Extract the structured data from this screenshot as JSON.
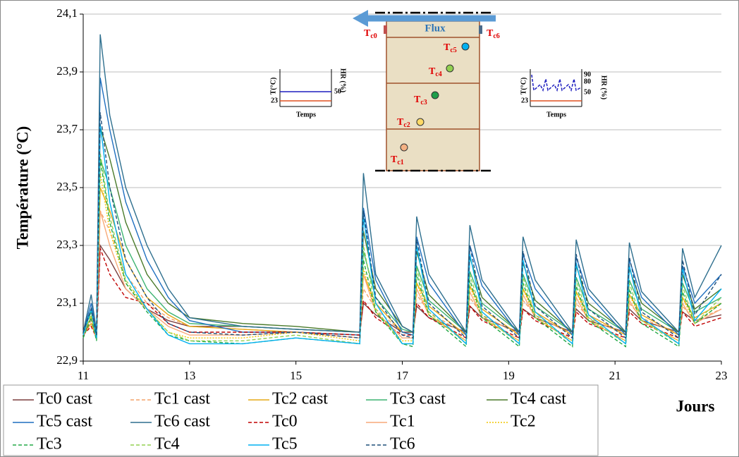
{
  "chart_data": {
    "type": "line",
    "ylabel": "Température (°C)",
    "xlabel": "Jours",
    "x": [
      11,
      11.15,
      11.25,
      11.32,
      11.5,
      11.8,
      12.2,
      12.6,
      13,
      14,
      15,
      16.2,
      16.27,
      16.5,
      17,
      17.2,
      17.27,
      17.5,
      18.2,
      18.27,
      18.5,
      19.2,
      19.27,
      19.5,
      20.2,
      20.27,
      20.5,
      21.2,
      21.27,
      21.5,
      22.2,
      22.27,
      22.5,
      23
    ],
    "xlim": [
      11,
      23
    ],
    "xticks": [
      11,
      13,
      15,
      17,
      19,
      21,
      23
    ],
    "ylim": [
      22.9,
      24.1
    ],
    "yticks": [
      {
        "value": 22.9,
        "label": "22,9"
      },
      {
        "value": 23.1,
        "label": "23,1"
      },
      {
        "value": 23.3,
        "label": "23,3"
      },
      {
        "value": 23.5,
        "label": "23,5"
      },
      {
        "value": 23.7,
        "label": "23,7"
      },
      {
        "value": 23.9,
        "label": "23,9"
      },
      {
        "value": 24.1,
        "label": "24,1"
      }
    ],
    "grid": true,
    "series": [
      {
        "name": "Tc0 cast",
        "color": "#7b3f3f",
        "dash": "solid",
        "values": [
          23.0,
          23.03,
          22.99,
          23.3,
          23.25,
          23.15,
          23.08,
          23.04,
          23.02,
          23.02,
          23.01,
          23.0,
          23.1,
          23.06,
          23.0,
          23.0,
          23.09,
          23.05,
          23.0,
          23.09,
          23.05,
          23.0,
          23.08,
          23.05,
          23.0,
          23.08,
          23.04,
          23.0,
          23.08,
          23.04,
          23.0,
          23.07,
          23.04,
          23.06
        ]
      },
      {
        "name": "Tc1 cast",
        "color": "#f4a46a",
        "dash": "dashed",
        "values": [
          23.0,
          23.04,
          22.99,
          23.42,
          23.35,
          23.2,
          23.1,
          23.05,
          23.02,
          23.01,
          23.0,
          22.99,
          23.15,
          23.08,
          23.0,
          22.99,
          23.13,
          23.07,
          22.99,
          23.12,
          23.06,
          22.99,
          23.11,
          23.06,
          22.99,
          23.1,
          23.05,
          22.99,
          23.1,
          23.05,
          22.99,
          23.09,
          23.04,
          23.08
        ]
      },
      {
        "name": "Tc2 cast",
        "color": "#e6a817",
        "dash": "solid",
        "values": [
          23.0,
          23.05,
          22.99,
          23.5,
          23.42,
          23.25,
          23.12,
          23.06,
          23.02,
          23.01,
          23.0,
          22.99,
          23.2,
          23.1,
          23.0,
          22.99,
          23.17,
          23.09,
          22.99,
          23.16,
          23.08,
          22.99,
          23.15,
          23.07,
          22.99,
          23.14,
          23.06,
          22.99,
          23.13,
          23.06,
          22.99,
          23.12,
          23.05,
          23.1
        ]
      },
      {
        "name": "Tc3 cast",
        "color": "#3cb371",
        "dash": "solid",
        "values": [
          23.0,
          23.07,
          23.0,
          23.6,
          23.5,
          23.3,
          23.15,
          23.07,
          23.03,
          23.02,
          23.01,
          23.0,
          23.28,
          23.12,
          23.01,
          23.0,
          23.23,
          23.11,
          23.0,
          23.21,
          23.1,
          23.0,
          23.2,
          23.09,
          23.0,
          23.19,
          23.08,
          23.0,
          23.18,
          23.08,
          23.0,
          23.17,
          23.07,
          23.12
        ]
      },
      {
        "name": "Tc4 cast",
        "color": "#4a7a2a",
        "dash": "solid",
        "values": [
          23.0,
          23.08,
          23.0,
          23.71,
          23.6,
          23.38,
          23.2,
          23.1,
          23.05,
          23.03,
          23.02,
          23.0,
          23.35,
          23.15,
          23.02,
          23.0,
          23.28,
          23.13,
          23.0,
          23.26,
          23.12,
          23.0,
          23.24,
          23.11,
          23.0,
          23.23,
          23.1,
          23.0,
          23.22,
          23.1,
          23.0,
          23.2,
          23.08,
          23.15
        ]
      },
      {
        "name": "Tc5 cast",
        "color": "#1f6fbf",
        "dash": "solid",
        "values": [
          23.0,
          23.1,
          23.0,
          23.88,
          23.7,
          23.45,
          23.25,
          23.12,
          23.04,
          23.0,
          23.0,
          22.99,
          23.43,
          23.18,
          23.0,
          22.99,
          23.33,
          23.17,
          22.99,
          23.3,
          23.16,
          22.99,
          23.27,
          23.15,
          22.99,
          23.26,
          23.13,
          22.99,
          23.25,
          23.12,
          22.99,
          23.23,
          23.1,
          23.2
        ]
      },
      {
        "name": "Tc6 cast",
        "color": "#2e6f8e",
        "dash": "solid",
        "values": [
          23.0,
          23.13,
          23.0,
          24.03,
          23.75,
          23.5,
          23.3,
          23.15,
          23.05,
          23.02,
          23.01,
          23.0,
          23.55,
          23.2,
          23.02,
          23.0,
          23.4,
          23.2,
          23.0,
          23.37,
          23.18,
          23.0,
          23.33,
          23.18,
          23.0,
          23.32,
          23.15,
          23.0,
          23.31,
          23.14,
          23.0,
          23.29,
          23.12,
          23.3
        ]
      },
      {
        "name": "Tc0",
        "color": "#c00000",
        "dash": "dashed",
        "values": [
          22.99,
          23.02,
          22.98,
          23.29,
          23.2,
          23.12,
          23.1,
          23.03,
          23.0,
          23.0,
          23.0,
          22.99,
          23.11,
          23.05,
          22.99,
          22.99,
          23.1,
          23.05,
          22.98,
          23.09,
          23.04,
          22.98,
          23.08,
          23.04,
          22.98,
          23.07,
          23.03,
          22.98,
          23.07,
          23.03,
          22.98,
          23.07,
          23.02,
          23.05
        ]
      },
      {
        "name": "Tc1",
        "color": "#f7a978",
        "dash": "solid",
        "values": [
          22.99,
          23.03,
          22.98,
          23.42,
          23.3,
          23.15,
          23.08,
          23.02,
          22.99,
          22.99,
          23.0,
          22.98,
          23.2,
          23.07,
          22.98,
          22.98,
          23.15,
          23.06,
          22.97,
          23.14,
          23.05,
          22.97,
          23.13,
          23.05,
          22.97,
          23.12,
          23.04,
          22.97,
          23.11,
          23.04,
          22.97,
          23.1,
          23.03,
          23.08
        ]
      },
      {
        "name": "Tc2",
        "color": "#f2c500",
        "dash": "dotted",
        "values": [
          22.99,
          23.03,
          22.98,
          23.55,
          23.35,
          23.17,
          23.08,
          23.0,
          22.98,
          22.98,
          23.0,
          22.97,
          23.22,
          23.07,
          22.97,
          22.97,
          23.17,
          23.06,
          22.97,
          23.16,
          23.05,
          22.97,
          23.15,
          23.05,
          22.97,
          23.14,
          23.04,
          22.97,
          23.13,
          23.04,
          22.97,
          23.12,
          23.03,
          23.1
        ]
      },
      {
        "name": "Tc3",
        "color": "#22a846",
        "dash": "dashed",
        "values": [
          22.98,
          23.05,
          22.97,
          23.6,
          23.38,
          23.17,
          23.07,
          22.99,
          22.97,
          22.96,
          22.98,
          22.96,
          23.25,
          23.07,
          22.96,
          22.95,
          23.2,
          23.06,
          22.95,
          23.18,
          23.05,
          22.95,
          23.17,
          23.05,
          22.95,
          23.16,
          23.04,
          22.95,
          23.15,
          23.03,
          22.95,
          23.14,
          23.03,
          23.1
        ]
      },
      {
        "name": "Tc4",
        "color": "#92d050",
        "dash": "dashed",
        "values": [
          22.99,
          23.06,
          22.98,
          23.62,
          23.4,
          23.18,
          23.08,
          23.0,
          22.97,
          22.97,
          22.99,
          22.96,
          23.3,
          23.08,
          22.96,
          22.96,
          23.22,
          23.07,
          22.96,
          23.2,
          23.06,
          22.96,
          23.19,
          23.06,
          22.96,
          23.18,
          23.05,
          22.96,
          23.17,
          23.04,
          22.96,
          23.16,
          23.03,
          23.12
        ]
      },
      {
        "name": "Tc5",
        "color": "#00b0f0",
        "dash": "solid",
        "values": [
          22.99,
          23.08,
          22.98,
          23.72,
          23.45,
          23.2,
          23.08,
          22.99,
          22.96,
          22.96,
          22.98,
          22.96,
          23.4,
          23.1,
          22.96,
          22.96,
          23.3,
          23.08,
          22.96,
          23.27,
          23.07,
          22.96,
          23.25,
          23.07,
          22.96,
          23.24,
          23.06,
          22.96,
          23.23,
          23.05,
          22.96,
          23.22,
          23.04,
          23.15
        ]
      },
      {
        "name": "Tc6",
        "color": "#1f4e79",
        "dash": "dashed",
        "values": [
          23.0,
          23.08,
          22.99,
          23.76,
          23.5,
          23.25,
          23.12,
          23.03,
          23.0,
          22.99,
          23.0,
          22.98,
          23.42,
          23.12,
          22.99,
          22.98,
          23.32,
          23.1,
          22.98,
          23.3,
          23.09,
          22.98,
          23.28,
          23.09,
          22.98,
          23.27,
          23.08,
          22.98,
          23.26,
          23.07,
          22.98,
          23.25,
          23.06,
          23.2
        ]
      }
    ],
    "inset": {
      "flux": "Flux",
      "sensors": [
        {
          "main": "T",
          "sub": "c0"
        },
        {
          "main": "T",
          "sub": "c1"
        },
        {
          "main": "T",
          "sub": "c2"
        },
        {
          "main": "T",
          "sub": "c3"
        },
        {
          "main": "T",
          "sub": "c4"
        },
        {
          "main": "T",
          "sub": "c5"
        },
        {
          "main": "T",
          "sub": "c6"
        }
      ],
      "left": {
        "t_axis": "T(°C)",
        "hr_axis": "HR (%)",
        "hr": "50",
        "t": "23",
        "time": "Temps"
      },
      "right": {
        "t_axis": "T(°C)",
        "hr_axis": "HR (%)",
        "hr_high": "90",
        "hr_mid": "80",
        "hr": "50",
        "t": "23",
        "time": "Temps"
      }
    }
  }
}
